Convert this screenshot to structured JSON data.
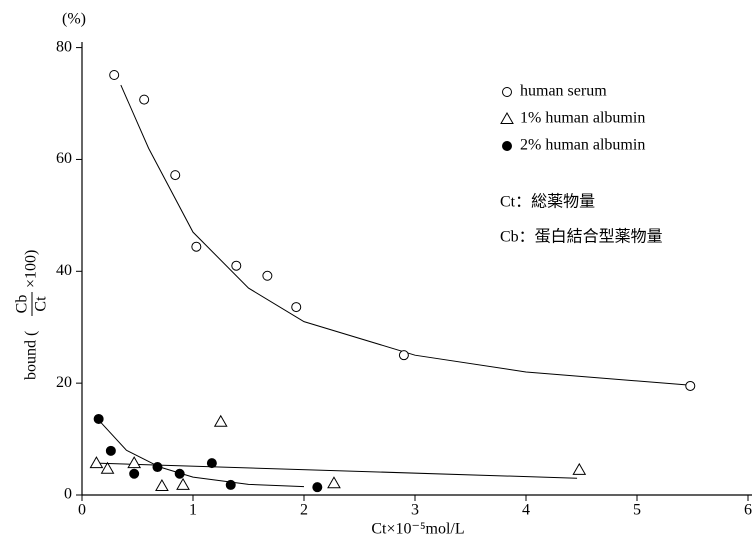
{
  "chart_data": {
    "type": "scatter",
    "unit_label": "(%)",
    "ylabel": {
      "prefix": "bound (",
      "numerator": "Cb",
      "denominator": "Ct",
      "suffix": "×100)"
    },
    "xlabel": "Ct×10⁻⁵mol/L",
    "xlim": [
      0,
      6
    ],
    "ylim": [
      0,
      81
    ],
    "xticks": [
      0,
      1,
      2,
      3,
      4,
      5,
      6
    ],
    "yticks": [
      0,
      20,
      40,
      60,
      80
    ],
    "grid": false,
    "legend": "upper right",
    "series": [
      {
        "name": "human serum",
        "color": "#000000",
        "marker": "open-circle",
        "x": [
          0.29,
          0.56,
          0.84,
          1.03,
          1.39,
          1.67,
          1.93,
          2.9,
          5.48
        ],
        "values": [
          75.1,
          70.7,
          57.2,
          44.4,
          41.0,
          39.2,
          33.6,
          25.0,
          19.5
        ]
      },
      {
        "name": "1% human albumin",
        "color": "#000000",
        "marker": "open-triangle",
        "x": [
          0.13,
          0.23,
          0.47,
          0.72,
          0.91,
          1.25,
          2.27,
          4.48
        ],
        "values": [
          5.7,
          4.7,
          5.7,
          1.6,
          1.8,
          13.1,
          2.1,
          4.5
        ]
      },
      {
        "name": "2% human albumin",
        "color": "#000000",
        "marker": "filled-circle",
        "x": [
          0.15,
          0.26,
          0.47,
          0.68,
          0.88,
          1.17,
          1.34,
          2.12
        ],
        "values": [
          13.6,
          7.9,
          3.8,
          5.0,
          3.8,
          5.7,
          1.8,
          1.4
        ]
      }
    ],
    "curves": [
      {
        "color": "#000000",
        "x": [
          0.35,
          0.6,
          1.0,
          1.5,
          2.0,
          3.0,
          4.0,
          5.5
        ],
        "y": [
          73.3,
          62,
          47,
          37,
          31,
          25,
          22,
          19.6
        ]
      },
      {
        "color": "#000000",
        "x": [
          0.13,
          4.46
        ],
        "y": [
          5.7,
          3.0
        ]
      },
      {
        "color": "#000000",
        "x": [
          0.15,
          0.4,
          0.7,
          1.0,
          1.5,
          2.0
        ],
        "y": [
          13.4,
          8,
          5,
          3.2,
          1.9,
          1.5
        ]
      }
    ],
    "notes": [
      "Ct：総薬物量",
      "Cb：蛋白結合型薬物量"
    ]
  }
}
